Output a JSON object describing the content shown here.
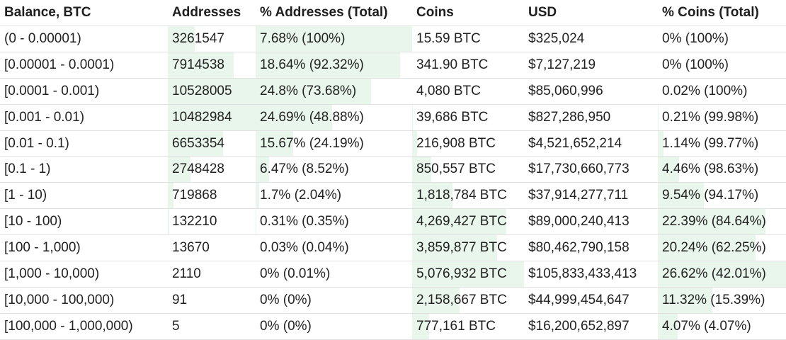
{
  "table": {
    "headers": [
      "Balance, BTC",
      "Addresses",
      "% Addresses (Total)",
      "Coins",
      "USD",
      "% Coins (Total)"
    ],
    "rows": [
      {
        "balance": "(0 - 0.00001)",
        "addresses": "3261547",
        "pct_addresses": "7.68% (100%)",
        "coins": "15.59 BTC",
        "usd": "$325,024",
        "pct_coins": "0% (100%)",
        "addr_fill": 0.31,
        "pct_addr_fill": 1.0,
        "coins_fill": 0.0,
        "pct_coins_fill": 0.0
      },
      {
        "balance": "[0.00001 - 0.0001)",
        "addresses": "7914538",
        "pct_addresses": "18.64% (92.32%)",
        "coins": "341.90 BTC",
        "usd": "$7,127,219",
        "pct_coins": "0% (100%)",
        "addr_fill": 0.75,
        "pct_addr_fill": 0.9232,
        "coins_fill": 0.0,
        "pct_coins_fill": 0.0
      },
      {
        "balance": "[0.0001 - 0.001)",
        "addresses": "10528005",
        "pct_addresses": "24.8% (73.68%)",
        "coins": "4,080 BTC",
        "usd": "$85,060,996",
        "pct_coins": "0.02% (100%)",
        "addr_fill": 1.0,
        "pct_addr_fill": 0.7368,
        "coins_fill": 0.0,
        "pct_coins_fill": 0.0
      },
      {
        "balance": "[0.001 - 0.01)",
        "addresses": "10482984",
        "pct_addresses": "24.69% (48.88%)",
        "coins": "39,686 BTC",
        "usd": "$827,286,950",
        "pct_coins": "0.21% (99.98%)",
        "addr_fill": 0.996,
        "pct_addr_fill": 0.4888,
        "coins_fill": 0.008,
        "pct_coins_fill": 0.008
      },
      {
        "balance": "[0.01 - 0.1)",
        "addresses": "6653354",
        "pct_addresses": "15.67% (24.19%)",
        "coins": "216,908 BTC",
        "usd": "$4,521,652,214",
        "pct_coins": "1.14% (99.77%)",
        "addr_fill": 0.63,
        "pct_addr_fill": 0.2419,
        "coins_fill": 0.043,
        "pct_coins_fill": 0.043
      },
      {
        "balance": "[0.1 - 1)",
        "addresses": "2748428",
        "pct_addresses": "6.47% (8.52%)",
        "coins": "850,557 BTC",
        "usd": "$17,730,660,773",
        "pct_coins": "4.46% (98.63%)",
        "addr_fill": 0.26,
        "pct_addr_fill": 0.0852,
        "coins_fill": 0.168,
        "pct_coins_fill": 0.168
      },
      {
        "balance": "[1 - 10)",
        "addresses": "719868",
        "pct_addresses": "1.7% (2.04%)",
        "coins": "1,818,784 BTC",
        "usd": "$37,914,277,711",
        "pct_coins": "9.54% (94.17%)",
        "addr_fill": 0.068,
        "pct_addr_fill": 0.0204,
        "coins_fill": 0.358,
        "pct_coins_fill": 0.358
      },
      {
        "balance": "[10 - 100)",
        "addresses": "132210",
        "pct_addresses": "0.31% (0.35%)",
        "coins": "4,269,427 BTC",
        "usd": "$89,000,240,413",
        "pct_coins": "22.39% (84.64%)",
        "addr_fill": 0.013,
        "pct_addr_fill": 0.0035,
        "coins_fill": 0.841,
        "pct_coins_fill": 0.841
      },
      {
        "balance": "[100 - 1,000)",
        "addresses": "13670",
        "pct_addresses": "0.03% (0.04%)",
        "coins": "3,859,877 BTC",
        "usd": "$80,462,790,158",
        "pct_coins": "20.24% (62.25%)",
        "addr_fill": 0.0,
        "pct_addr_fill": 0.0,
        "coins_fill": 0.76,
        "pct_coins_fill": 0.76
      },
      {
        "balance": "[1,000 - 10,000)",
        "addresses": "2110",
        "pct_addresses": "0% (0.01%)",
        "coins": "5,076,932 BTC",
        "usd": "$105,833,433,413",
        "pct_coins": "26.62% (42.01%)",
        "addr_fill": 0.0,
        "pct_addr_fill": 0.0,
        "coins_fill": 1.0,
        "pct_coins_fill": 1.0
      },
      {
        "balance": "[10,000 - 100,000)",
        "addresses": "91",
        "pct_addresses": "0% (0%)",
        "coins": "2,158,667 BTC",
        "usd": "$44,999,454,647",
        "pct_coins": "11.32% (15.39%)",
        "addr_fill": 0.0,
        "pct_addr_fill": 0.0,
        "coins_fill": 0.425,
        "pct_coins_fill": 0.425
      },
      {
        "balance": "[100,000 - 1,000,000)",
        "addresses": "5",
        "pct_addresses": "0% (0%)",
        "coins": "777,161 BTC",
        "usd": "$16,200,652,897",
        "pct_coins": "4.07% (4.07%)",
        "addr_fill": 0.0,
        "pct_addr_fill": 0.0,
        "coins_fill": 0.153,
        "pct_coins_fill": 0.153
      }
    ]
  }
}
